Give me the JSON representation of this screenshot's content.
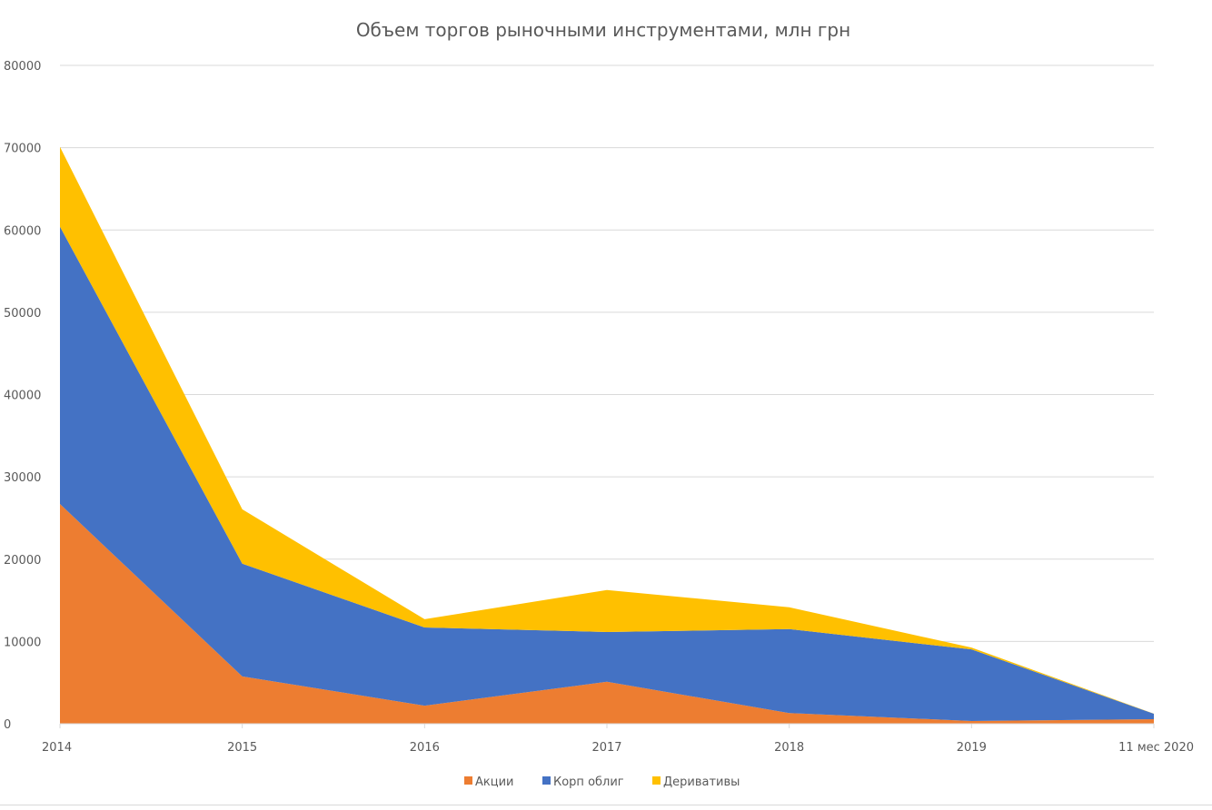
{
  "chart_data": {
    "type": "area",
    "stacked": true,
    "title": "Объем торгов рыночными инструментами, млн грн",
    "xlabel": "",
    "ylabel": "",
    "categories": [
      "2014",
      "2015",
      "2016",
      "2017",
      "2018",
      "2019",
      "11 мес 2020"
    ],
    "ylim": [
      0,
      80000
    ],
    "yticks": [
      0,
      10000,
      20000,
      30000,
      40000,
      50000,
      60000,
      70000,
      80000
    ],
    "grid": true,
    "legend_position": "bottom",
    "series": [
      {
        "name": "Акции",
        "color": "#ED7D31",
        "values": [
          26700,
          5750,
          2200,
          5100,
          1300,
          330,
          550
        ]
      },
      {
        "name": "Корп облиг",
        "color": "#4472C4",
        "values": [
          33700,
          13700,
          9500,
          6050,
          10200,
          8700,
          660
        ]
      },
      {
        "name": "Деривативы",
        "color": "#FFC000",
        "values": [
          9700,
          6600,
          1000,
          5100,
          2650,
          220,
          20
        ]
      }
    ]
  }
}
